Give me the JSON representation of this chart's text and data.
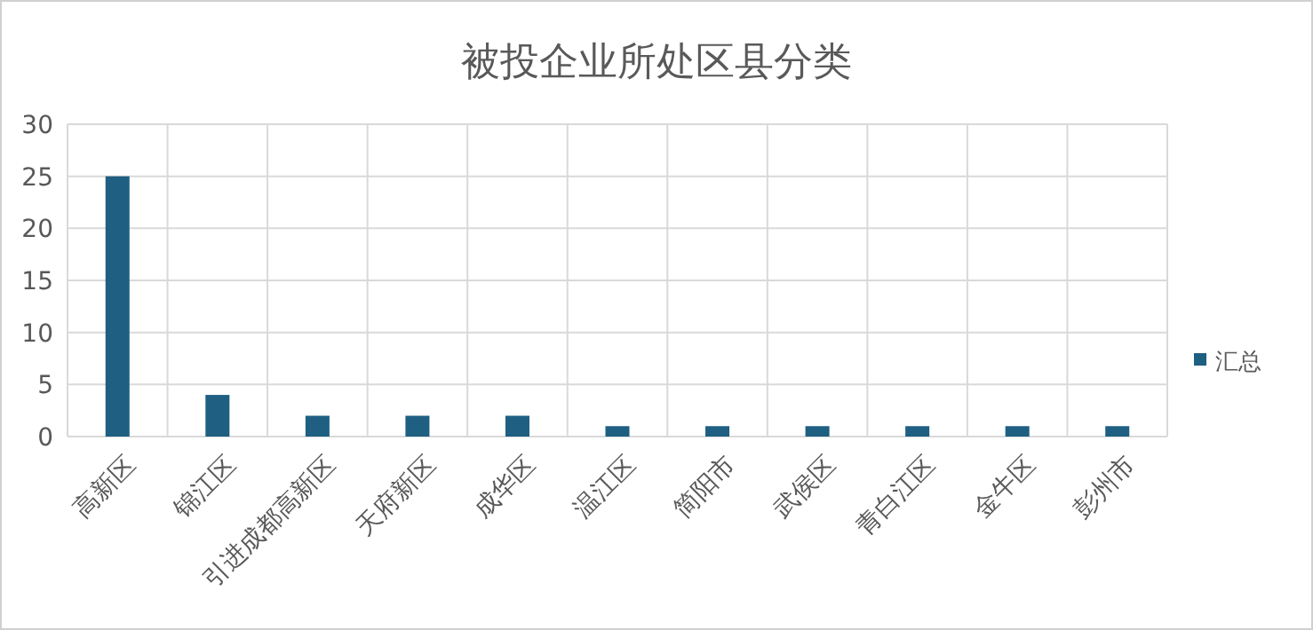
{
  "chart_data": {
    "type": "bar",
    "title": "被投企业所处区县分类",
    "categories": [
      "高新区",
      "锦江区",
      "引进成都高新区",
      "天府新区",
      "成华区",
      "温江区",
      "简阳市",
      "武侯区",
      "青白江区",
      "金牛区",
      "彭州市"
    ],
    "series": [
      {
        "name": "汇总",
        "color": "#1f5f82",
        "values": [
          25,
          4,
          2,
          2,
          2,
          1,
          1,
          1,
          1,
          1,
          1
        ]
      }
    ],
    "ylim": [
      0,
      30
    ],
    "yticks": [
      0,
      5,
      10,
      15,
      20,
      25,
      30
    ],
    "grid": true,
    "legend": "right"
  }
}
